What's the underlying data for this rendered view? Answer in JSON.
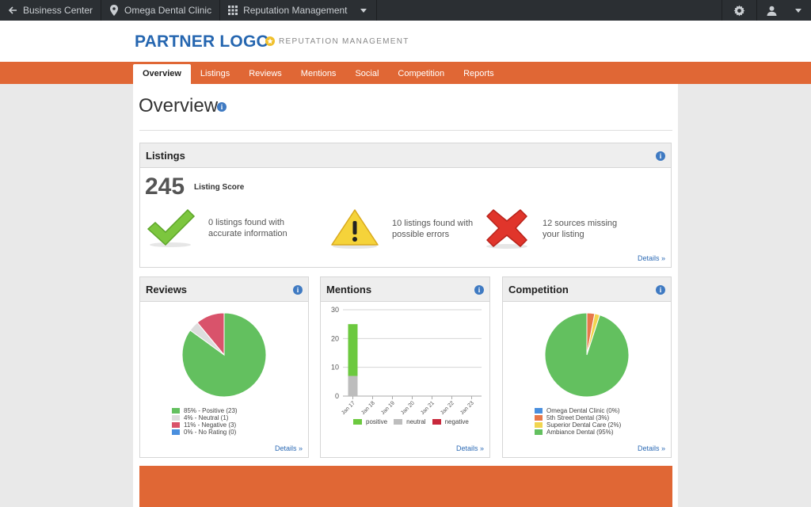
{
  "topbar": {
    "back_label": "Business Center",
    "location_label": "Omega Dental Clinic",
    "app_label": "Reputation Management"
  },
  "header": {
    "logo": "PARTNER LOGO",
    "product": "REPUTATION MANAGEMENT"
  },
  "nav": {
    "tabs": [
      {
        "label": "Overview",
        "active": true
      },
      {
        "label": "Listings"
      },
      {
        "label": "Reviews"
      },
      {
        "label": "Mentions"
      },
      {
        "label": "Social"
      },
      {
        "label": "Competition"
      },
      {
        "label": "Reports"
      }
    ]
  },
  "page": {
    "title": "Overview"
  },
  "listings": {
    "title": "Listings",
    "score": "245",
    "score_label": "Listing Score",
    "stats": [
      {
        "line1": "0 listings found with",
        "line2": "accurate information"
      },
      {
        "line1": "10 listings found with",
        "line2": "possible errors"
      },
      {
        "line1": "12 sources missing",
        "line2": "your listing"
      }
    ],
    "details": "Details »"
  },
  "reviews": {
    "title": "Reviews",
    "legend": [
      "85% - Positive (23)",
      "4% - Neutral (1)",
      "11% - Negative (3)",
      "0% - No Rating (0)"
    ],
    "details": "Details »"
  },
  "mentions": {
    "title": "Mentions",
    "legend": [
      "positive",
      "neutral",
      "negative"
    ],
    "details": "Details »"
  },
  "competition": {
    "title": "Competition",
    "legend": [
      "Omega Dental Clinic (0%)",
      "5th Street Dental (3%)",
      "Superior Dental Care (2%)",
      "Ambiance Dental (95%)"
    ],
    "details": "Details »"
  },
  "colors": {
    "orange": "#e06735",
    "topbar": "#2b2f33",
    "logo_blue": "#2566b0",
    "positive": "#63c05f",
    "neutral": "#dddddd",
    "negative": "#d9536b",
    "no_rating": "#4a8fde",
    "bar_positive": "#6cc93f",
    "bar_neutral": "#bdbdbd",
    "bar_negative": "#c8283b",
    "comp_blue": "#4a8fde",
    "comp_orange": "#e8784a",
    "comp_yellow": "#f1d54f",
    "comp_green": "#63c05f"
  },
  "chart_data": [
    {
      "type": "pie",
      "categories": [
        "Positive",
        "Neutral",
        "Negative",
        "No Rating"
      ],
      "values": [
        85,
        4,
        11,
        0
      ]
    },
    {
      "type": "bar",
      "stacked": true,
      "categories": [
        "Jan 17",
        "Jan 18",
        "Jan 19",
        "Jan 20",
        "Jan 21",
        "Jan 22",
        "Jan 23"
      ],
      "series": [
        {
          "name": "positive",
          "values": [
            18,
            0,
            0,
            0,
            0,
            0,
            0
          ]
        },
        {
          "name": "neutral",
          "values": [
            7,
            0,
            0,
            0,
            0,
            0,
            0
          ]
        },
        {
          "name": "negative",
          "values": [
            0,
            0,
            0,
            0,
            0,
            0,
            0
          ]
        }
      ],
      "ylim": [
        0,
        30
      ],
      "yticks": [
        0,
        10,
        20,
        30
      ]
    },
    {
      "type": "pie",
      "categories": [
        "Omega Dental Clinic",
        "5th Street Dental",
        "Superior Dental Care",
        "Ambiance Dental"
      ],
      "values": [
        0,
        3,
        2,
        95
      ]
    }
  ]
}
